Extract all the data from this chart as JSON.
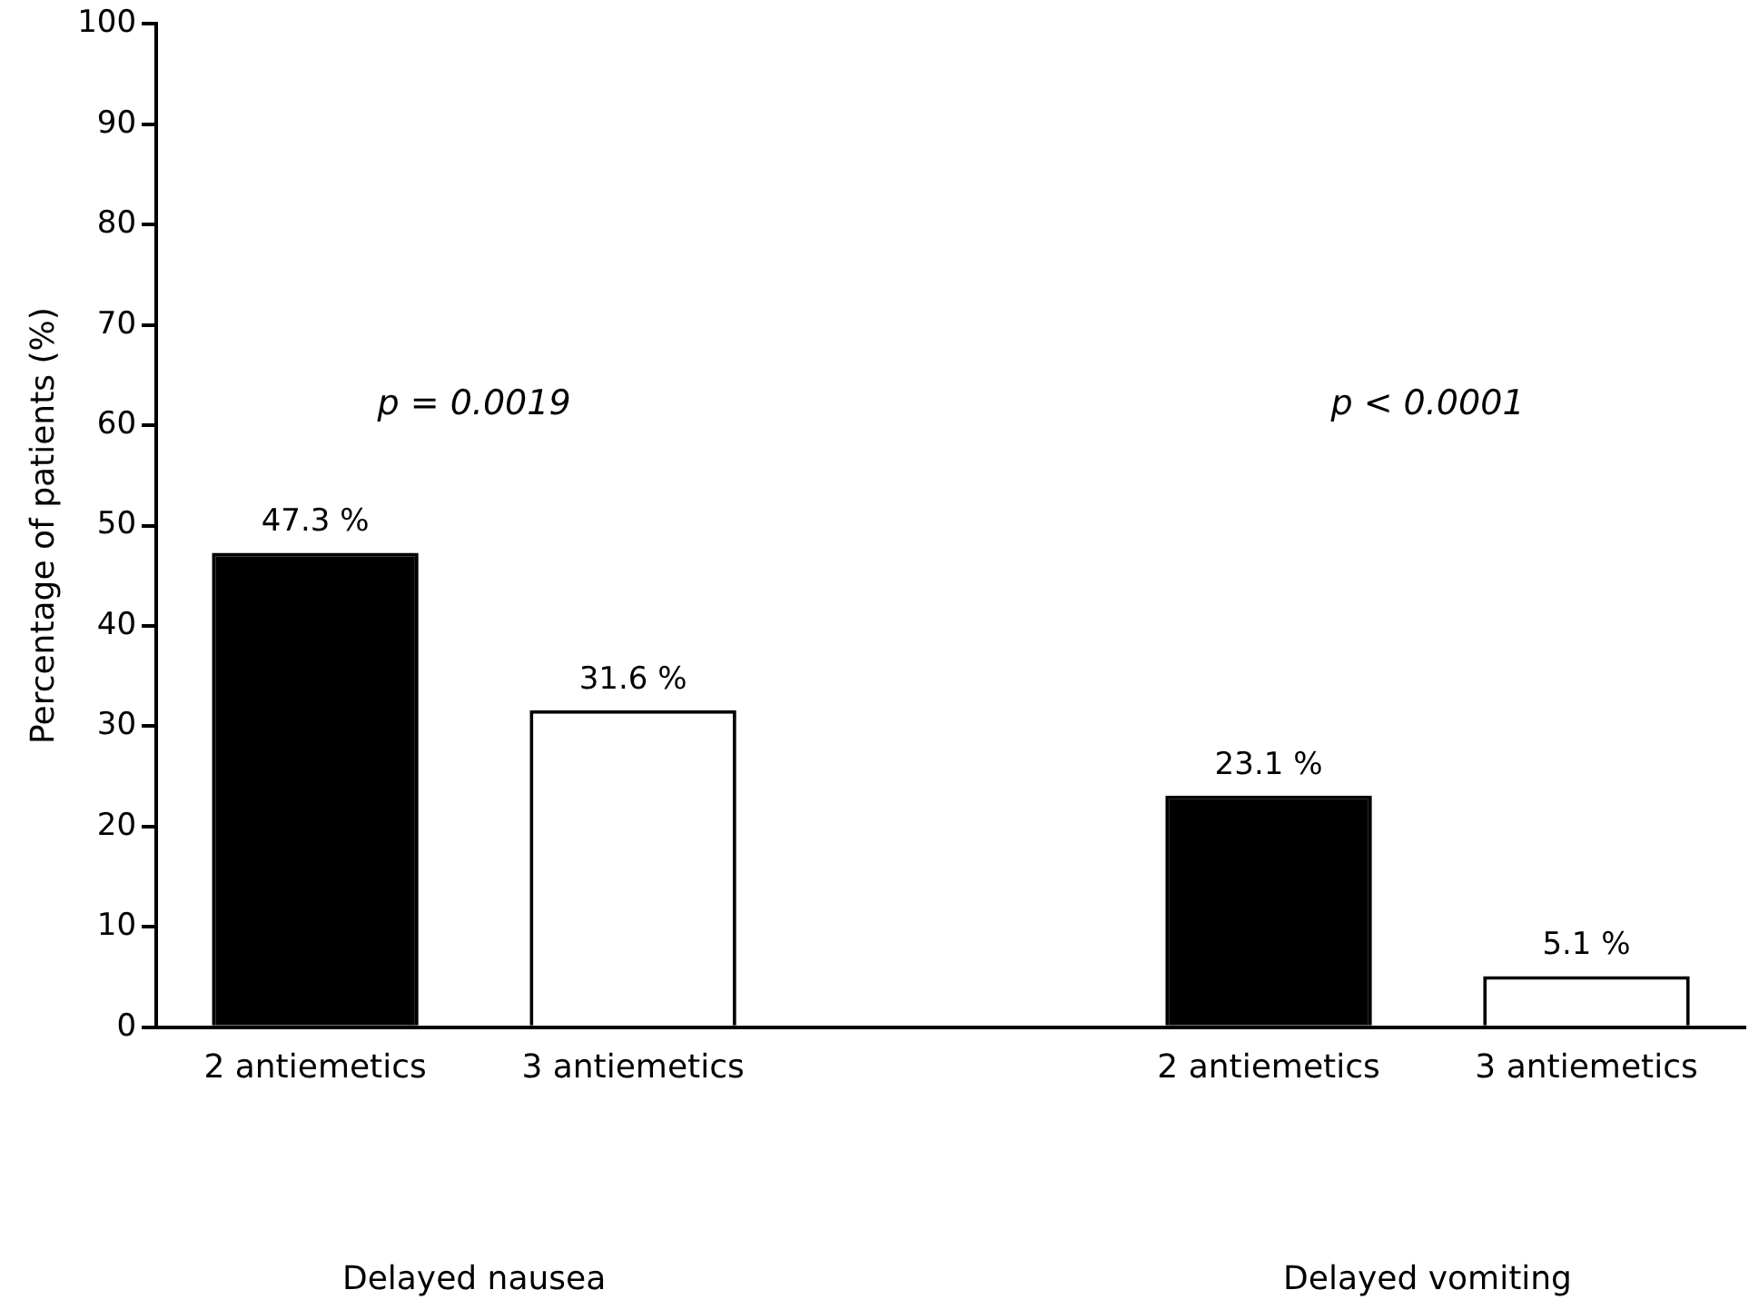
{
  "chart_data": {
    "type": "bar",
    "ylabel": "Percentage of patients (%)",
    "categories": [
      "2 antiemetics",
      "3 antiemetics",
      null,
      "2 antiemetics",
      "3 antiemetics"
    ],
    "values": [
      47.3,
      31.6,
      null,
      23.1,
      5.1
    ],
    "colors": [
      "#000000",
      "#ffffff",
      null,
      "#000000",
      "#ffffff"
    ],
    "value_labels": [
      "47.3 %",
      "31.6 %",
      null,
      "23.1 %",
      "5.1 %"
    ],
    "annotations": [
      "p = 0.0019",
      "p < 0.0001",
      "Delayed nausea",
      "Delayed vomiting"
    ],
    "ylim": [
      0,
      100
    ],
    "yticks": [
      0,
      10,
      20,
      30,
      40,
      50,
      60,
      70,
      80,
      90,
      100
    ],
    "grid": false,
    "legend": false
  }
}
